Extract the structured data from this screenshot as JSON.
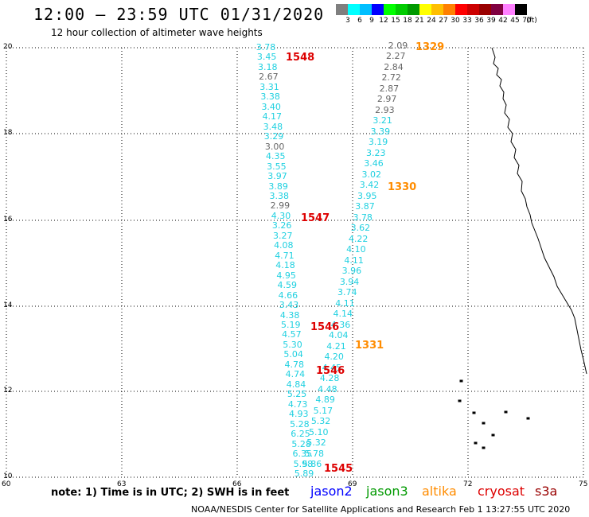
{
  "title": "12:00 – 23:59 UTC 01/31/2020",
  "subtitle": "12 hour collection of altimeter wave heights",
  "scale": {
    "colors": [
      "#7f7f7f",
      "#00ffff",
      "#00bfff",
      "#0000ff",
      "#00ff00",
      "#00cc00",
      "#009900",
      "#ffff00",
      "#ffbf00",
      "#ff8000",
      "#ff0000",
      "#cc0000",
      "#990000",
      "#800040",
      "#ff80ff",
      "#000000"
    ],
    "labels": [
      "3",
      "6",
      "9",
      "12",
      "15",
      "18",
      "21",
      "24",
      "27",
      "30",
      "33",
      "36",
      "39",
      "42",
      "45",
      "70",
      "(ft)"
    ]
  },
  "axes": {
    "x_ticks": [
      "60",
      "63",
      "66",
      "69",
      "72",
      "75"
    ],
    "y_ticks": [
      "20",
      "18",
      "16",
      "14",
      "12",
      "10"
    ]
  },
  "passes": [
    {
      "id": "1548",
      "color": "#dd0000"
    },
    {
      "id": "1547",
      "color": "#dd0000"
    },
    {
      "id": "1546",
      "color": "#dd0000"
    },
    {
      "id": "1546",
      "color": "#dd0000"
    },
    {
      "id": "1545",
      "color": "#dd0000"
    },
    {
      "id": "1329",
      "color": "#ff8c00"
    },
    {
      "id": "1330",
      "color": "#ff8c00"
    },
    {
      "id": "1331",
      "color": "#ff8c00"
    }
  ],
  "track_left": [
    "3.78",
    "3.45",
    "3.18",
    "2.67",
    "3.31",
    "3.38",
    "3.40",
    "4.17",
    "3.48",
    "3.29",
    "3.00",
    "4.35",
    "3.55",
    "3.97",
    "3.89",
    "3.38",
    "2.99",
    "4.30",
    "3.26",
    "3.27",
    "4.08",
    "4.71",
    "4.18",
    "4.95",
    "4.59",
    "4.66",
    "3.43",
    "4.38",
    "5.19",
    "4.57",
    "5.30",
    "5.04",
    "4.78",
    "4.74",
    "4.84",
    "5.25",
    "4.73",
    "4.93",
    "5.28",
    "6.25",
    "5.28",
    "6.35",
    "5.98",
    "5.89"
  ],
  "track_right": [
    "2.09",
    "2.27",
    "2.84",
    "2.72",
    "2.87",
    "2.97",
    "2.93",
    "3.21",
    "3.39",
    "3.19",
    "3.23",
    "3.46",
    "3.02",
    "3.42",
    "3.95",
    "3.87",
    "3.78",
    "3.62",
    "4.22",
    "4.10",
    "4.11",
    "3.96",
    "3.94",
    "3.74",
    "4.11",
    "4.14",
    "4.36",
    "4.04",
    "4.21",
    "4.20",
    "4.45",
    "4.28",
    "4.48",
    "4.89",
    "5.17",
    "5.32",
    "5.10",
    "5.32",
    "5.78",
    "5.86"
  ],
  "note": "note:  1) Time is in UTC;  2) SWH is in feet",
  "missions": [
    {
      "name": "jason2",
      "color": "#0000ff"
    },
    {
      "name": "jason3",
      "color": "#009900"
    },
    {
      "name": "altika",
      "color": "#ff8c00"
    },
    {
      "name": "cryosat",
      "color": "#dd0000"
    },
    {
      "name": "s3a",
      "color": "#990000"
    }
  ],
  "credit": "NOAA/NESDIS Center for Satellite Applications and Research    Feb  1 13:27:55 UTC 2020"
}
